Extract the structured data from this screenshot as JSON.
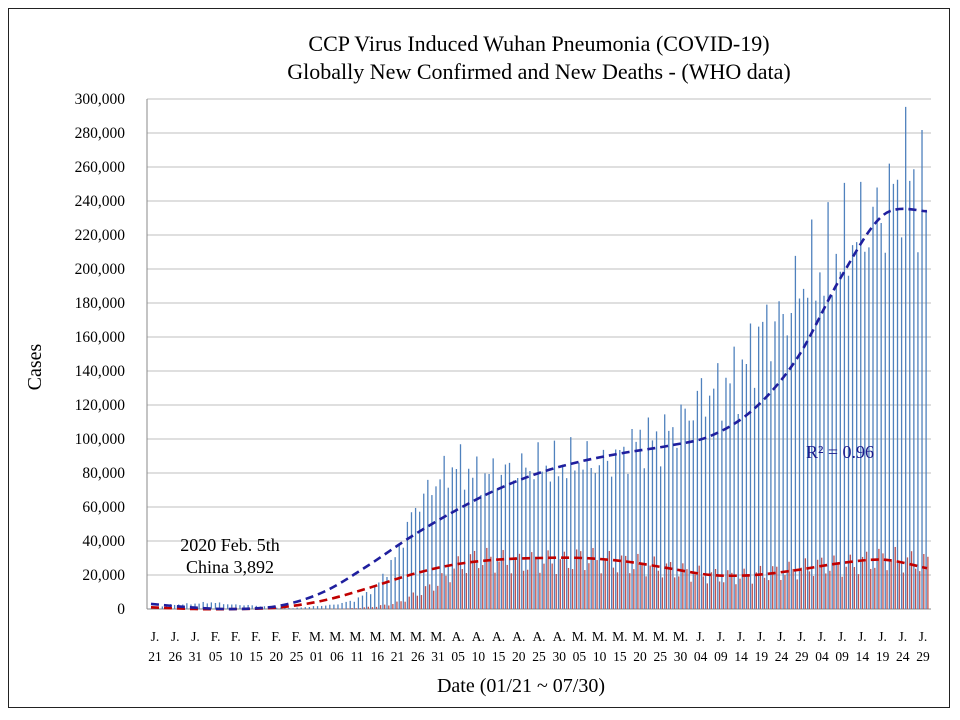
{
  "chart_data": {
    "type": "bar",
    "title_line1": "CCP Virus Induced Wuhan Pneumonia (COVID-19)",
    "title_line2": "Globally New Confirmed and New Deaths - (WHO data)",
    "xlabel": "Date (01/21 ~ 07/30)",
    "ylabel": "Cases",
    "ylim": [
      0,
      300000
    ],
    "yticks": [
      "0",
      "20,000",
      "40,000",
      "60,000",
      "80,000",
      "100,000",
      "120,000",
      "140,000",
      "160,000",
      "180,000",
      "200,000",
      "220,000",
      "240,000",
      "260,000",
      "280,000",
      "300,000"
    ],
    "grid": true,
    "annotation_line1": "2020 Feb. 5th",
    "annotation_line2": "China 3,892",
    "r2_label": "R² = 0.96",
    "x_month_labels": [
      "J.",
      "J.",
      "J.",
      "F.",
      "F.",
      "F.",
      "F.",
      "F.",
      "M.",
      "M.",
      "M.",
      "M.",
      "M.",
      "M.",
      "M.",
      "A.",
      "A.",
      "A.",
      "A.",
      "A.",
      "A.",
      "M.",
      "M.",
      "M.",
      "M.",
      "M.",
      "M.",
      "J.",
      "J.",
      "J.",
      "J.",
      "J.",
      "J.",
      "J.",
      "J.",
      "J.",
      "J.",
      "J.",
      "J."
    ],
    "x_day_labels": [
      "21",
      "26",
      "31",
      "05",
      "10",
      "15",
      "20",
      "25",
      "01",
      "06",
      "11",
      "16",
      "21",
      "26",
      "31",
      "05",
      "10",
      "15",
      "20",
      "25",
      "30",
      "05",
      "10",
      "15",
      "20",
      "25",
      "30",
      "04",
      "09",
      "14",
      "19",
      "24",
      "29",
      "04",
      "09",
      "14",
      "19",
      "24",
      "29"
    ],
    "series": [
      {
        "name": "New Confirmed",
        "color": "#4f81bd",
        "values_every5days": [
          200,
          2500,
          3000,
          3900,
          2600,
          2100,
          1000,
          500,
          1500,
          2500,
          5000,
          12000,
          30000,
          60000,
          75000,
          85000,
          78000,
          80000,
          82000,
          85000,
          84000,
          88000,
          85000,
          90000,
          100000,
          100000,
          110000,
          125000,
          130000,
          140000,
          165000,
          170000,
          195000,
          200000,
          215000,
          225000,
          235000,
          260000,
          240000
        ]
      },
      {
        "name": "New Deaths",
        "color": "#c0504d",
        "values_every5days": [
          10,
          50,
          60,
          70,
          90,
          120,
          150,
          100,
          80,
          200,
          500,
          1500,
          3500,
          9000,
          15000,
          25000,
          30000,
          28000,
          27000,
          28000,
          27000,
          30000,
          28000,
          27000,
          26000,
          24000,
          22000,
          20000,
          19000,
          19000,
          21000,
          22000,
          24000,
          26000,
          25000,
          28000,
          30000,
          28000,
          27000
        ]
      }
    ],
    "trend_confirmed": [
      3000,
      800,
      0,
      2000,
      10000,
      25000,
      42000,
      57000,
      70000,
      80000,
      87000,
      92000,
      96000,
      102000,
      118000,
      148000,
      195000,
      232000,
      234000
    ],
    "trend_deaths": [
      1000,
      0,
      0,
      1000,
      5000,
      12000,
      20000,
      26000,
      29000,
      30000,
      30000,
      28000,
      24000,
      20000,
      20000,
      23000,
      27000,
      29000,
      24000
    ],
    "colors": {
      "confirmed_trend": "#1f1f9e",
      "deaths_trend": "#c00000",
      "grid": "#bfbfbf"
    }
  }
}
